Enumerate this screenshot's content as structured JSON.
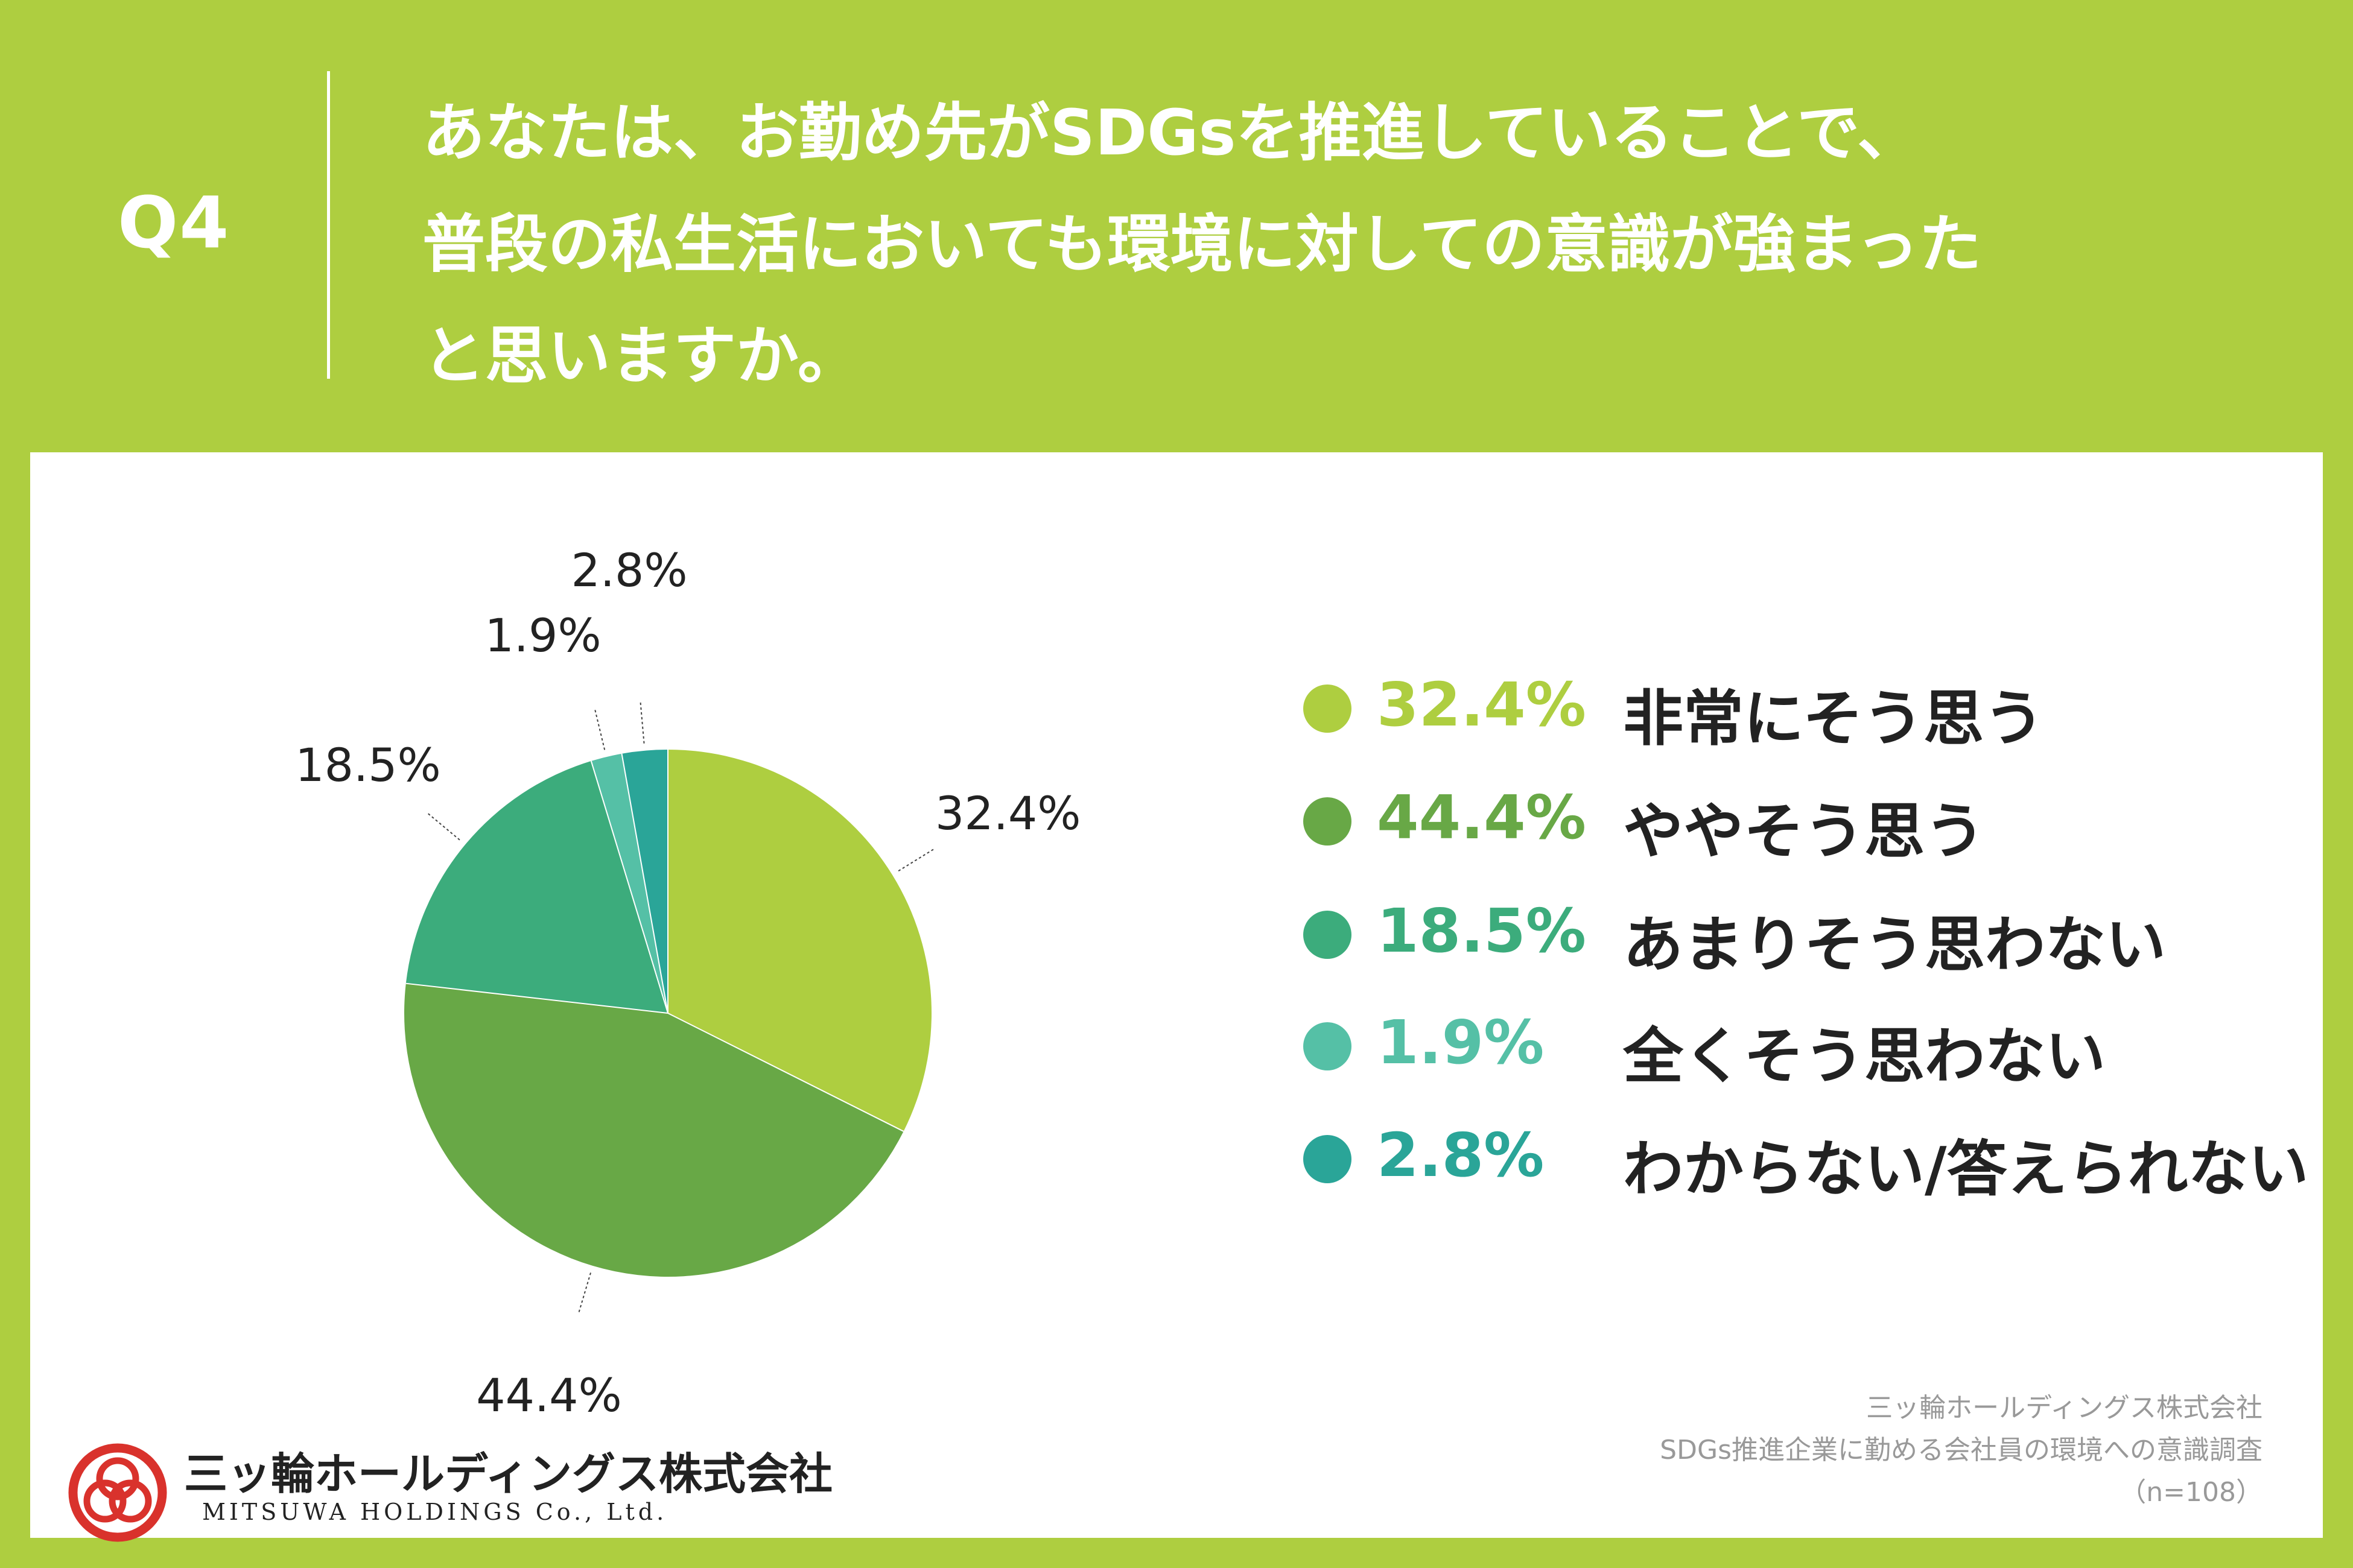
{
  "header": {
    "qnum": "Q4",
    "question_lines": [
      "あなたは、お勤め先がSDGsを推進していることで、",
      "普段の私生活においても環境に対しての意識が強まった",
      "と思いますか。"
    ]
  },
  "chart_data": {
    "type": "pie",
    "unit": "%",
    "categories": [
      "非常にそう思う",
      "ややそう思う",
      "あまりそう思わない",
      "全くそう思わない",
      "わからない/答えられない"
    ],
    "values": [
      32.4,
      44.4,
      18.5,
      1.9,
      2.8
    ],
    "value_labels": [
      "32.4%",
      "44.4%",
      "18.5%",
      "1.9%",
      "2.8%"
    ],
    "colors": [
      "#aece40",
      "#68a846",
      "#3cac7c",
      "#55c0a6",
      "#2aa598"
    ],
    "start_angle_deg": 0,
    "direction": "clockwise",
    "legend_placement": "right"
  },
  "source": {
    "company": "三ッ輪ホールディングス株式会社",
    "survey": "SDGs推進企業に勤める会社員の環境への意識調査",
    "sample": "（n=108）"
  },
  "logo": {
    "name_jp": "三ッ輪ホールディングス株式会社",
    "name_en": "MITSUWA HOLDINGS Co., Ltd.",
    "colors": [
      "#d9322c"
    ]
  }
}
